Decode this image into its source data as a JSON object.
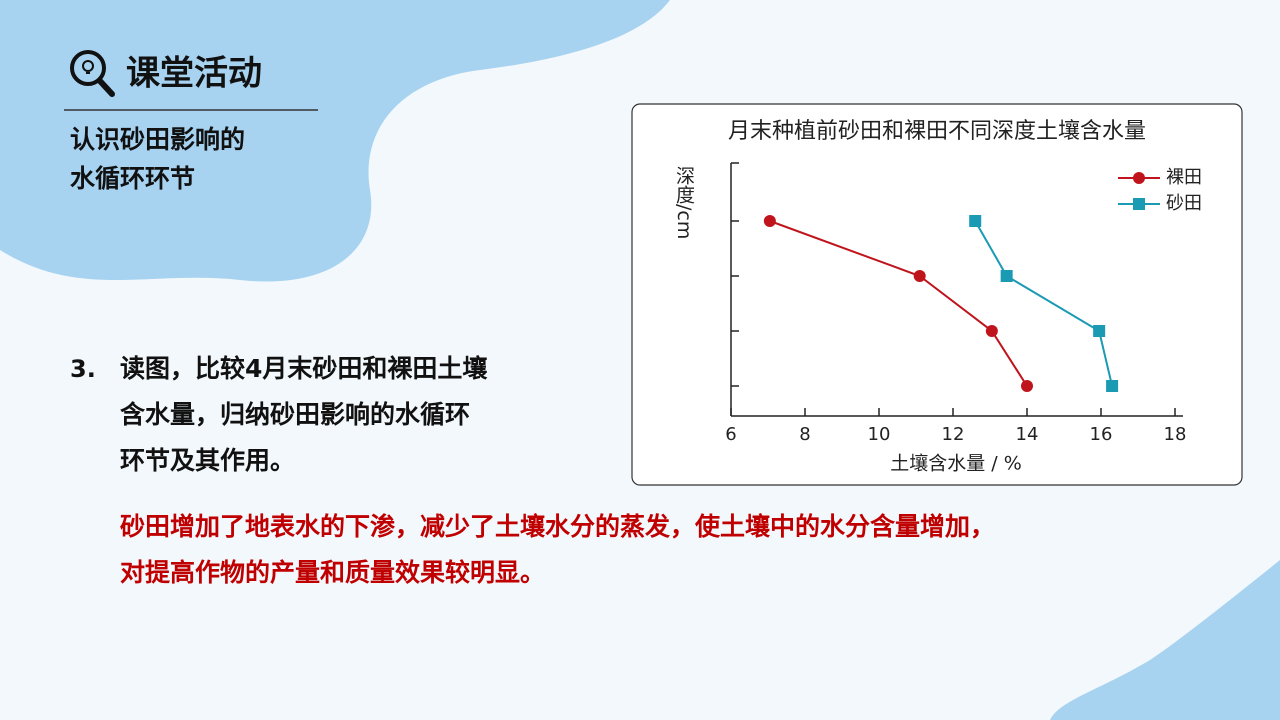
{
  "header": {
    "title": "课堂活动",
    "subtitle": [
      "认识砂田影响的",
      "水循环环节"
    ]
  },
  "question": {
    "number": "3.",
    "lines": [
      "读图，比较4月末砂田和裸田土壤",
      "含水量，归纳砂田影响的水循环",
      "环节及其作用。"
    ]
  },
  "answer": {
    "lines": [
      "砂田增加了地表水的下渗，减少了土壤水分的蒸发，使土壤中的水分含量增加，",
      "对提高作物的产量和质量效果较明显。"
    ]
  },
  "chart_data": {
    "type": "line",
    "orientation": "horizontal",
    "title": "月末种植前砂田和裸田不同深度土壤含水量",
    "x_label": "土壤含水量 / %",
    "y_label": "深度/cm",
    "categories": [
      null,
      null,
      null,
      null
    ],
    "series": [
      {
        "name": "裸田",
        "color": "#c0141c",
        "marker": "circle",
        "values": [
          7.05,
          11.1,
          13.05,
          14.0
        ]
      },
      {
        "name": "砂田",
        "color": "#1b9ab4",
        "marker": "square",
        "values": [
          12.6,
          13.45,
          15.95,
          16.3
        ]
      }
    ],
    "xlim": [
      6,
      18
    ],
    "xticks": [
      6,
      8,
      10,
      12,
      14,
      16,
      18
    ],
    "legend": "upper right",
    "grid": false
  }
}
